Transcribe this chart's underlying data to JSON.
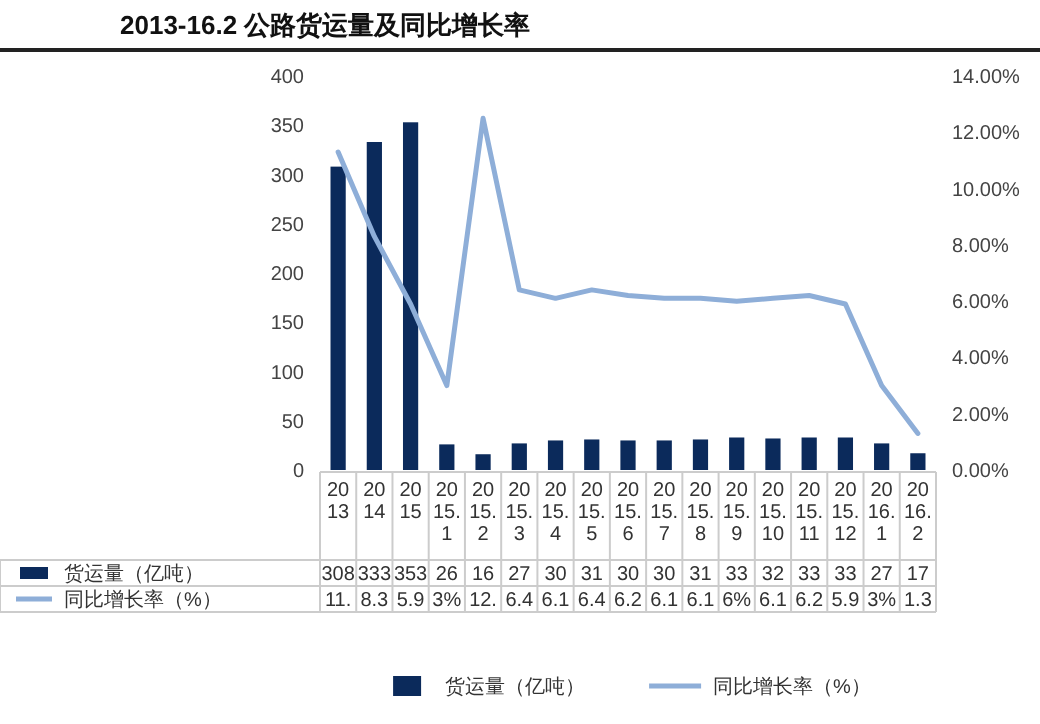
{
  "chart_data": {
    "type": "bar",
    "title": "2013-16.2 公路货运量及同比增长率",
    "categories": [
      "2013",
      "2014",
      "2015",
      "2015.1",
      "2015.2",
      "2015.3",
      "2015.4",
      "2015.5",
      "2015.6",
      "2015.7",
      "2015.8",
      "2015.9",
      "2015.10",
      "2015.11",
      "2015.12",
      "2016.1",
      "2016.2"
    ],
    "series": [
      {
        "name": "货运量（亿吨）",
        "color": "#0b2a5b",
        "values": [
          308,
          333,
          353,
          26,
          16,
          27,
          30,
          31,
          30,
          30,
          31,
          33,
          32,
          33,
          33,
          27,
          17
        ],
        "value_labels": [
          "308",
          "333",
          "353",
          "26",
          "16",
          "27",
          "30",
          "31",
          "30",
          "30",
          "31",
          "33",
          "32",
          "33",
          "33",
          "27",
          "17"
        ]
      },
      {
        "name": "同比增长率（%）",
        "type": "line",
        "axis": "y2",
        "color": "#8eaed8",
        "values": [
          11.3,
          8.3,
          5.9,
          3,
          12.5,
          6.4,
          6.1,
          6.4,
          6.2,
          6.1,
          6.1,
          6,
          6.1,
          6.2,
          5.9,
          3,
          1.3
        ],
        "value_labels": [
          "11.",
          "8.3",
          "5.9",
          "3%",
          "12.",
          "6.4",
          "6.1",
          "6.4",
          "6.2",
          "6.1",
          "6.1",
          "6%",
          "6.1",
          "6.2",
          "5.9",
          "3%",
          "1.3"
        ]
      }
    ],
    "ylim": [
      0,
      400
    ],
    "yticks": [
      0,
      50,
      100,
      150,
      200,
      250,
      300,
      350,
      400
    ],
    "y2lim": [
      0,
      14
    ],
    "y2ticks": [
      {
        "value": 0,
        "label": "0.00%"
      },
      {
        "value": 2,
        "label": "2.00%"
      },
      {
        "value": 4,
        "label": "4.00%"
      },
      {
        "value": 6,
        "label": "6.00%"
      },
      {
        "value": 8,
        "label": "8.00%"
      },
      {
        "value": 10,
        "label": "10.00%"
      },
      {
        "value": 12,
        "label": "12.00%"
      },
      {
        "value": 14,
        "label": "14.00%"
      }
    ],
    "legend": "bottom"
  }
}
